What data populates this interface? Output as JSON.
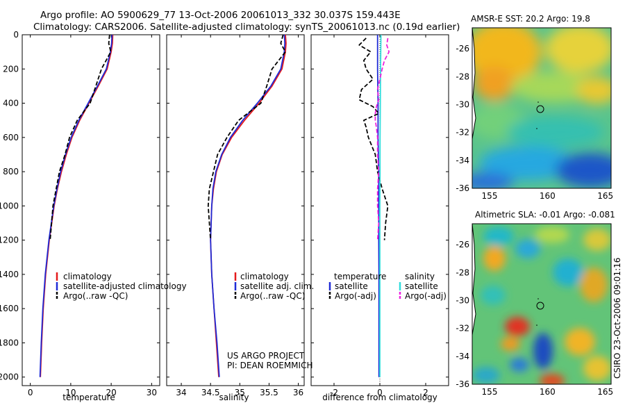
{
  "header": {
    "line1": "Argo profile: AO 5900629_77 13-Oct-2006 20061013_332 30.037S 159.443E",
    "line2": "Climatology: CARS2006. Satellite-adjusted climatology: synTS_20061013.nc (0.19d earlier)"
  },
  "credits": {
    "project": "US ARGO PROJECT",
    "pi": "PI: DEAN ROEMMICH",
    "stamp": "CSIRO 23-Oct-2006 09:01:16"
  },
  "colors": {
    "climatology": "#e41a1c",
    "satellite": "#1f2bd6",
    "argo": "#000000",
    "sat_salinity": "#33dddd",
    "argo_salinity": "#ee22dd"
  },
  "chart_data": [
    {
      "type": "line",
      "name": "temperature-profile",
      "xlabel": "temperature",
      "ylabel": "",
      "xlim": [
        -2,
        32
      ],
      "ylim": [
        2050,
        0
      ],
      "xticks": [
        0,
        10,
        20,
        30
      ],
      "yticks": [
        0,
        200,
        400,
        600,
        800,
        1000,
        1200,
        1400,
        1600,
        1800,
        2000
      ],
      "legend": [
        "climatology",
        "satellite-adjusted climatology",
        "Argo(..raw -QC)"
      ],
      "depth": [
        0,
        50,
        100,
        200,
        300,
        400,
        500,
        600,
        700,
        800,
        900,
        1000,
        1200,
        1400,
        1600,
        1800,
        2000
      ],
      "series": [
        {
          "name": "climatology",
          "values": [
            20.4,
            20.3,
            20.0,
            19.0,
            16.8,
            14.5,
            12.2,
            10.3,
            8.9,
            7.7,
            6.7,
            5.9,
            4.7,
            3.8,
            3.2,
            2.8,
            2.5
          ]
        },
        {
          "name": "satellite-adjusted climatology",
          "values": [
            20.2,
            20.1,
            19.8,
            18.8,
            16.6,
            14.3,
            12.0,
            10.1,
            8.7,
            7.5,
            6.6,
            5.8,
            4.6,
            3.7,
            3.1,
            2.7,
            2.4
          ]
        },
        {
          "name": "Argo(..raw -QC)",
          "values": [
            19.6,
            19.4,
            19.9,
            17.6,
            16.2,
            14.8,
            11.6,
            9.7,
            8.6,
            7.2,
            6.4,
            5.6,
            4.9,
            null,
            null,
            null,
            null
          ]
        }
      ]
    },
    {
      "type": "line",
      "name": "salinity-profile",
      "xlabel": "salinity",
      "ylabel": "",
      "xlim": [
        33.75,
        36.1
      ],
      "ylim": [
        2050,
        0
      ],
      "xticks": [
        34,
        34.5,
        35,
        35.5,
        36
      ],
      "legend": [
        "climatology",
        "satellite adj. clim.",
        "Argo(..raw -QC)"
      ],
      "depth": [
        0,
        50,
        100,
        200,
        300,
        400,
        500,
        600,
        700,
        800,
        900,
        1000,
        1200,
        1400,
        1600,
        1800,
        2000
      ],
      "series": [
        {
          "name": "climatology",
          "values": [
            35.78,
            35.79,
            35.78,
            35.72,
            35.55,
            35.33,
            35.08,
            34.86,
            34.7,
            34.6,
            34.55,
            34.52,
            34.5,
            34.52,
            34.56,
            34.6,
            34.64
          ]
        },
        {
          "name": "satellite adj. clim.",
          "values": [
            35.76,
            35.77,
            35.76,
            35.7,
            35.53,
            35.3,
            35.05,
            34.84,
            34.69,
            34.59,
            34.54,
            34.52,
            34.5,
            34.52,
            34.56,
            34.61,
            34.65
          ]
        },
        {
          "name": "Argo(..raw -QC)",
          "values": [
            35.74,
            35.7,
            35.78,
            35.55,
            35.46,
            35.36,
            34.98,
            34.78,
            34.62,
            34.55,
            34.48,
            34.46,
            34.5,
            null,
            null,
            null,
            null
          ]
        }
      ]
    },
    {
      "type": "line",
      "name": "difference-profile",
      "xlabel": "difference from climatology",
      "ylabel": "",
      "xlim": [
        -3,
        3
      ],
      "ylim": [
        2050,
        0
      ],
      "xticks": [
        -2,
        0,
        2
      ],
      "legend_headers": [
        "temperature",
        "salinity"
      ],
      "legend": [
        "satellite",
        "Argo(-adj)",
        "satellite",
        "Argo(-adj)"
      ],
      "depth_sat": [
        0,
        100,
        200,
        400,
        600,
        800,
        1000,
        1200,
        1400,
        1600,
        1800,
        2000
      ],
      "depth_argo": [
        20,
        60,
        100,
        150,
        200,
        260,
        320,
        380,
        420,
        460,
        500,
        540,
        600,
        700,
        800,
        900,
        1000,
        1100,
        1200
      ],
      "series": [
        {
          "name": "temperature satellite",
          "values": [
            -0.1,
            -0.1,
            -0.1,
            -0.08,
            -0.08,
            -0.05,
            -0.05,
            -0.05,
            -0.04,
            -0.04,
            -0.04,
            -0.04
          ]
        },
        {
          "name": "temperature Argo(-adj)",
          "values": [
            -0.6,
            -0.9,
            -0.4,
            -0.7,
            -0.6,
            -0.3,
            -0.8,
            -0.9,
            -0.3,
            -0.05,
            -0.7,
            -0.6,
            -0.5,
            -0.2,
            -0.1,
            0.1,
            0.35,
            0.25,
            0.2
          ]
        },
        {
          "name": "salinity satellite",
          "values": [
            0.05,
            0.04,
            0.03,
            0.02,
            0.01,
            0.01,
            0.0,
            0.0,
            0.0,
            0.0,
            0.0,
            0.0
          ]
        },
        {
          "name": "salinity Argo(-adj)",
          "values": [
            0.35,
            0.3,
            0.4,
            0.2,
            0.1,
            0.0,
            -0.1,
            -0.05,
            -0.15,
            -0.2,
            -0.2,
            -0.15,
            -0.1,
            -0.1,
            -0.05,
            -0.1,
            -0.1,
            -0.05,
            -0.1
          ]
        }
      ]
    },
    {
      "type": "heatmap",
      "name": "sst-map",
      "title": "AMSR-E SST: 20.2  Argo: 19.8",
      "xlim": [
        153.5,
        165.5
      ],
      "ylim": [
        -36,
        -24.5
      ],
      "xticks": [
        155,
        160,
        165
      ],
      "yticks": [
        -26,
        -28,
        -30,
        -32,
        -34,
        -36
      ],
      "argo_position": [
        159.443,
        -30.037
      ]
    },
    {
      "type": "heatmap",
      "name": "sla-map",
      "title": "Altimetric SLA: -0.01  Argo: -0.081",
      "xlim": [
        153.5,
        165.5
      ],
      "ylim": [
        -36,
        -24.5
      ],
      "xticks": [
        155,
        160,
        165
      ],
      "yticks": [
        -26,
        -28,
        -30,
        -32,
        -34,
        -36
      ],
      "argo_position": [
        159.443,
        -30.037
      ]
    }
  ]
}
